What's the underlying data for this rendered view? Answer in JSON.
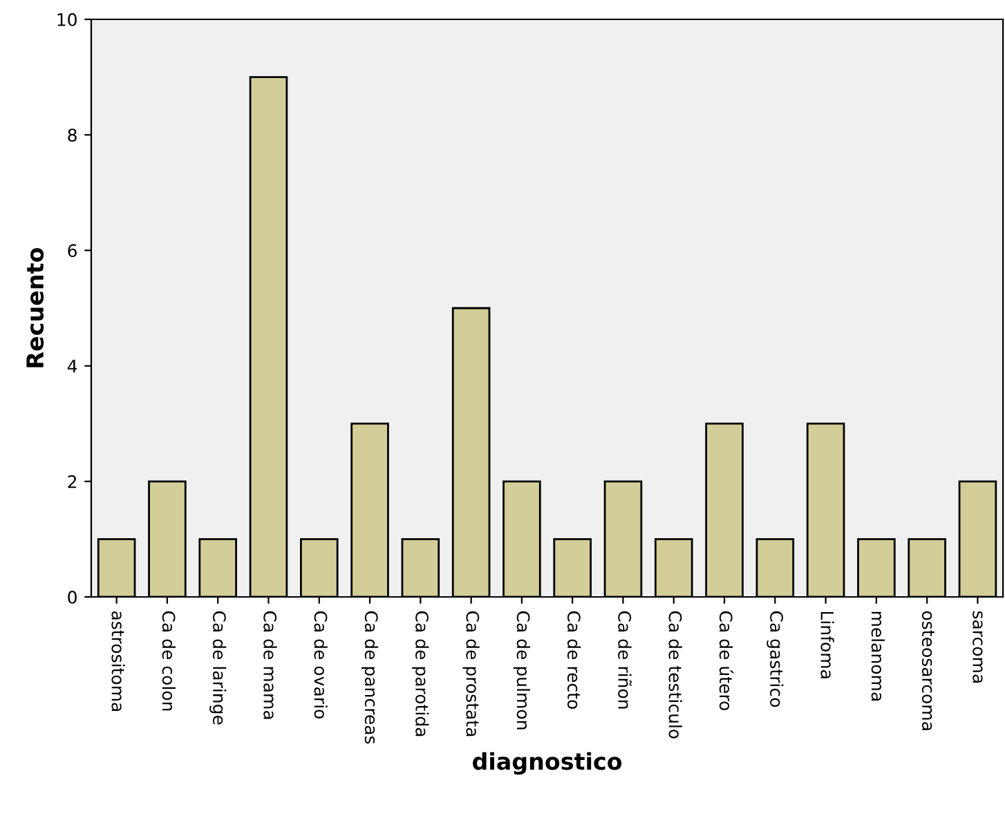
{
  "chart_data": {
    "type": "bar",
    "xlabel": "diagnostico",
    "ylabel": "Recuento",
    "categories": [
      "astrositoma",
      "Ca de colon",
      "Ca de laringe",
      "Ca de mama",
      "Ca de ovario",
      "Ca de pancreas",
      "Ca de parotida",
      "Ca de prostata",
      "Ca de pulmon",
      "Ca de recto",
      "Ca de riñon",
      "Ca de testiculo",
      "Ca de útero",
      "Ca gastrico",
      "Linfoma",
      "melanoma",
      "osteosarcoma",
      "sarcoma"
    ],
    "values": [
      1,
      2,
      1,
      9,
      1,
      3,
      1,
      5,
      2,
      1,
      2,
      1,
      3,
      1,
      3,
      1,
      1,
      2
    ],
    "color": "#d3ce98",
    "ylim": [
      0,
      10
    ],
    "yticks": [
      0,
      2,
      4,
      6,
      8,
      10
    ],
    "grid": false
  }
}
